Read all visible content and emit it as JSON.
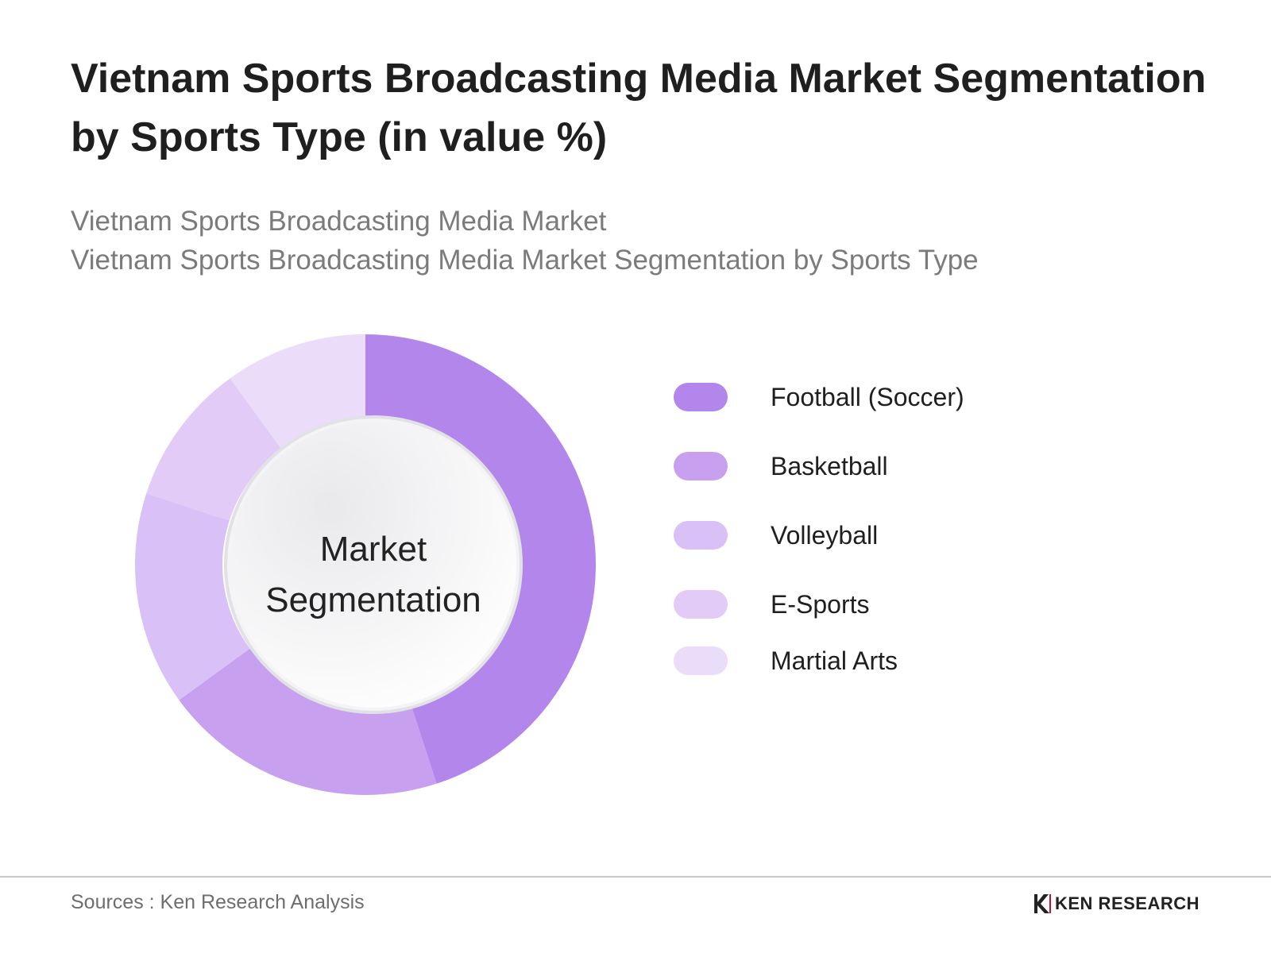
{
  "header": {
    "title": "Vietnam Sports Broadcasting Media Market Segmentation by Sports Type (in value %)",
    "subtitle_lines": [
      "Vietnam Sports Broadcasting Media Market",
      "Vietnam Sports Broadcasting Media Market Segmentation by Sports Type"
    ]
  },
  "chart_data": {
    "type": "pie",
    "variant": "donut",
    "center_label": [
      "Market",
      "Segmentation"
    ],
    "legend_position": "right",
    "categories": [
      "Football (Soccer)",
      "Basketball",
      "Volleyball",
      "E-Sports",
      "Martial Arts"
    ],
    "values": [
      45,
      20,
      15,
      10,
      10
    ],
    "unit": "%",
    "colors": [
      "#b386ec",
      "#c7a0f0",
      "#d9c0f6",
      "#e2ccf7",
      "#ebdcfa"
    ]
  },
  "footer": {
    "source": "Sources : Ken Research Analysis",
    "logo_text": "KEN RESEARCH",
    "logo_icon": "ken-research-k-logo-icon"
  }
}
